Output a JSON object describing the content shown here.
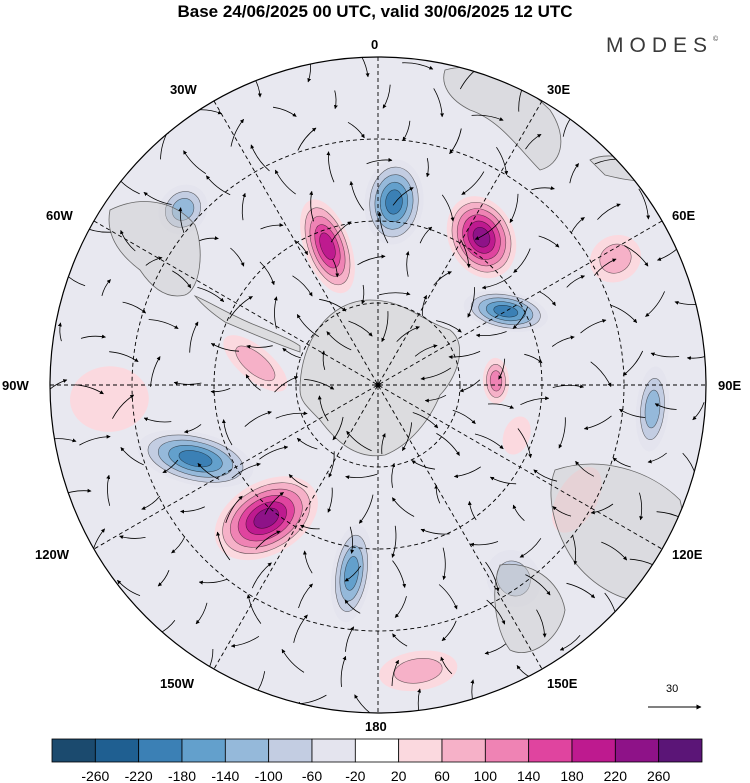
{
  "title": "Base 24/06/2025 00 UTC, valid 30/06/2025 12 UTC",
  "brand": "MODES",
  "brand_mark": "©",
  "longitude_labels": {
    "lon_0": "0",
    "lon_30e": "30E",
    "lon_60e": "60E",
    "lon_90e": "90E",
    "lon_120e": "120E",
    "lon_150e": "150E",
    "lon_180": "180",
    "lon_150w": "150W",
    "lon_120w": "120W",
    "lon_90w": "90W",
    "lon_60w": "60W",
    "lon_30w": "30W"
  },
  "vector_scale_label": "30",
  "colorbar": {
    "tick_labels": [
      "-260",
      "-220",
      "-180",
      "-140",
      "-100",
      "-60",
      "-20",
      "20",
      "60",
      "100",
      "140",
      "180",
      "220",
      "260"
    ],
    "colors": [
      "#1b4a6e",
      "#1f5f91",
      "#3b80b5",
      "#63a0cc",
      "#95b9da",
      "#c3cde2",
      "#e4e4ee",
      "#ffffff",
      "#fbd9df",
      "#f6b1c8",
      "#ef83b4",
      "#e0449f",
      "#be1a8f",
      "#8e1288",
      "#5b1577"
    ]
  },
  "anomaly_blobs": [
    {
      "lon": 5,
      "lat_dist": 0.56,
      "r1": 0.09,
      "r2": 0.13,
      "rot": 0,
      "value": -200
    },
    {
      "lon": 35,
      "lat_dist": 0.55,
      "r1": 0.13,
      "r2": 0.1,
      "rot": 30,
      "value": 260
    },
    {
      "lon": 60,
      "lat_dist": 0.45,
      "r1": 0.06,
      "r2": 0.13,
      "rot": 40,
      "value": -220
    },
    {
      "lon": 88,
      "lat_dist": 0.36,
      "r1": 0.07,
      "r2": 0.04,
      "rot": 0,
      "value": 140
    },
    {
      "lon": 95,
      "lat_dist": 0.84,
      "r1": 0.13,
      "r2": 0.05,
      "rot": 0,
      "value": -120
    },
    {
      "lon": 62,
      "lat_dist": 0.82,
      "r1": 0.07,
      "r2": 0.08,
      "rot": 0,
      "value": 100
    },
    {
      "lon": -20,
      "lat_dist": 0.45,
      "r1": 0.07,
      "r2": 0.15,
      "rot": 0,
      "value": 200
    },
    {
      "lon": -48,
      "lat_dist": 0.8,
      "r1": 0.08,
      "r2": 0.07,
      "rot": 0,
      "value": -120
    },
    {
      "lon": -80,
      "lat_dist": 0.38,
      "r1": 0.05,
      "r2": 0.12,
      "rot": 30,
      "value": 80
    },
    {
      "lon": -112,
      "lat_dist": 0.6,
      "r1": 0.08,
      "r2": 0.18,
      "rot": 35,
      "value": -220
    },
    {
      "lon": -140,
      "lat_dist": 0.53,
      "r1": 0.11,
      "r2": 0.17,
      "rot": 20,
      "value": 260
    },
    {
      "lon": -172,
      "lat_dist": 0.58,
      "r1": 0.06,
      "r2": 0.15,
      "rot": 0,
      "value": -180
    },
    {
      "lon": -93,
      "lat_dist": 0.82,
      "r1": 0.1,
      "r2": 0.12,
      "rot": 0,
      "value": 70
    },
    {
      "lon": 172,
      "lat_dist": 0.88,
      "r1": 0.12,
      "r2": 0.06,
      "rot": 0,
      "value": 100
    },
    {
      "lon": 145,
      "lat_dist": 0.72,
      "r1": 0.08,
      "r2": 0.09,
      "rot": 0,
      "value": -90
    },
    {
      "lon": 120,
      "lat_dist": 0.7,
      "r1": 0.11,
      "r2": 0.06,
      "rot": 0,
      "value": 70
    },
    {
      "lon": 110,
      "lat_dist": 0.45,
      "r1": 0.06,
      "r2": 0.04,
      "rot": 0,
      "value": 60
    }
  ]
}
